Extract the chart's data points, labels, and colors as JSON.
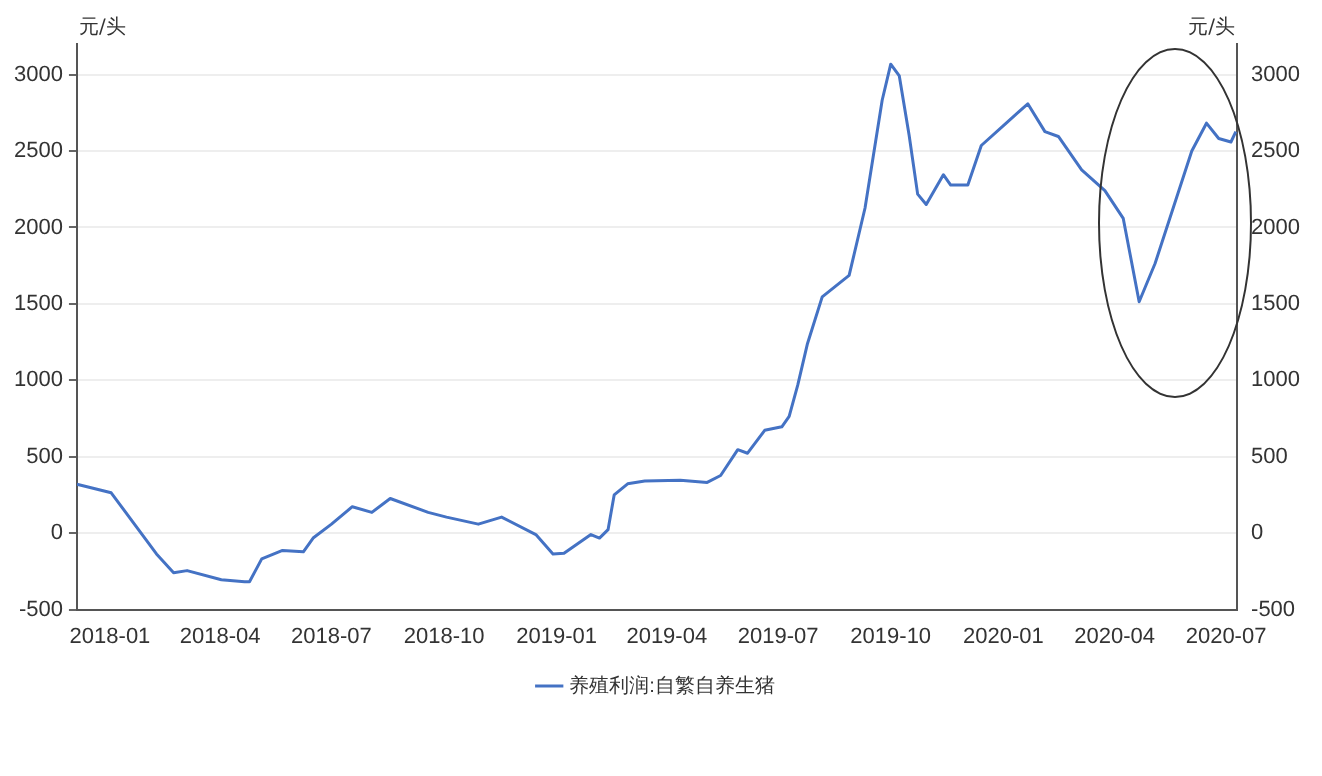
{
  "chart_data": {
    "type": "line",
    "ylabel": "元/头",
    "y2label": "元/头",
    "x": [
      "2017-12-05",
      "2018-01-02",
      "2018-02-08",
      "2018-02-22",
      "2018-03-05",
      "2018-04-02",
      "2018-04-21",
      "2018-04-25",
      "2018-05-05",
      "2018-05-22",
      "2018-06-08",
      "2018-06-16",
      "2018-07-01",
      "2018-07-18",
      "2018-08-03",
      "2018-08-18",
      "2018-09-18",
      "2018-10-03",
      "2018-10-29",
      "2018-11-17",
      "2018-12-15",
      "2018-12-29",
      "2019-01-07",
      "2019-01-29",
      "2019-02-05",
      "2019-02-12",
      "2019-02-17",
      "2019-02-28",
      "2019-03-14",
      "2019-04-12",
      "2019-05-04",
      "2019-05-15",
      "2019-05-29",
      "2019-06-06",
      "2019-06-20",
      "2019-07-04",
      "2019-07-10",
      "2019-07-17",
      "2019-07-25",
      "2019-08-06",
      "2019-08-28",
      "2019-09-10",
      "2019-09-24",
      "2019-10-01",
      "2019-10-08",
      "2019-10-16",
      "2019-10-23",
      "2019-10-30",
      "2019-11-13",
      "2019-11-19",
      "2019-12-03",
      "2019-12-14",
      "2020-01-02",
      "2020-01-21",
      "2020-02-04",
      "2020-02-15",
      "2020-03-05",
      "2020-03-24",
      "2020-04-08",
      "2020-04-21",
      "2020-05-04",
      "2020-06-03",
      "2020-06-15",
      "2020-06-25",
      "2020-07-05",
      "2020-07-09"
    ],
    "series": [
      {
        "name": "养殖利润:自繁自养生猪",
        "color": "#4472c4",
        "values": [
          320,
          264,
          -136,
          -259,
          -245,
          -305,
          -318,
          -318,
          -168,
          -113,
          -122,
          -32,
          59,
          173,
          136,
          227,
          136,
          105,
          59,
          105,
          -9,
          -136,
          -132,
          -9,
          -32,
          23,
          250,
          323,
          341,
          346,
          332,
          377,
          546,
          523,
          673,
          696,
          764,
          968,
          1241,
          1546,
          1686,
          2127,
          2832,
          3068,
          2991,
          2605,
          2218,
          2150,
          2345,
          2277,
          2277,
          2536,
          2673,
          2809,
          2627,
          2595,
          2377,
          2241,
          2059,
          1514,
          1764,
          2500,
          2682,
          2582,
          2559,
          2627
        ]
      }
    ],
    "xlim": [
      "2017-12-05",
      "2020-07-10"
    ],
    "xticks": [
      {
        "value": "2018-01-01",
        "label": "2018-01"
      },
      {
        "value": "2018-04-01",
        "label": "2018-04"
      },
      {
        "value": "2018-07-01",
        "label": "2018-07"
      },
      {
        "value": "2018-10-01",
        "label": "2018-10"
      },
      {
        "value": "2019-01-01",
        "label": "2019-01"
      },
      {
        "value": "2019-04-01",
        "label": "2019-04"
      },
      {
        "value": "2019-07-01",
        "label": "2019-07"
      },
      {
        "value": "2019-10-01",
        "label": "2019-10"
      },
      {
        "value": "2020-01-01",
        "label": "2020-01"
      },
      {
        "value": "2020-04-01",
        "label": "2020-04"
      },
      {
        "value": "2020-07-01",
        "label": "2020-07"
      }
    ],
    "ylim": [
      -500,
      3200
    ],
    "yticks": [
      -500,
      0,
      500,
      1000,
      1500,
      2000,
      2500,
      3000
    ],
    "y2lim": [
      -500,
      3200
    ],
    "y2ticks": [
      -500,
      0,
      500,
      1000,
      1500,
      2000,
      2500,
      3000
    ],
    "grid": "y",
    "legend": "bottom",
    "marker": "none",
    "line_style": "solid"
  }
}
